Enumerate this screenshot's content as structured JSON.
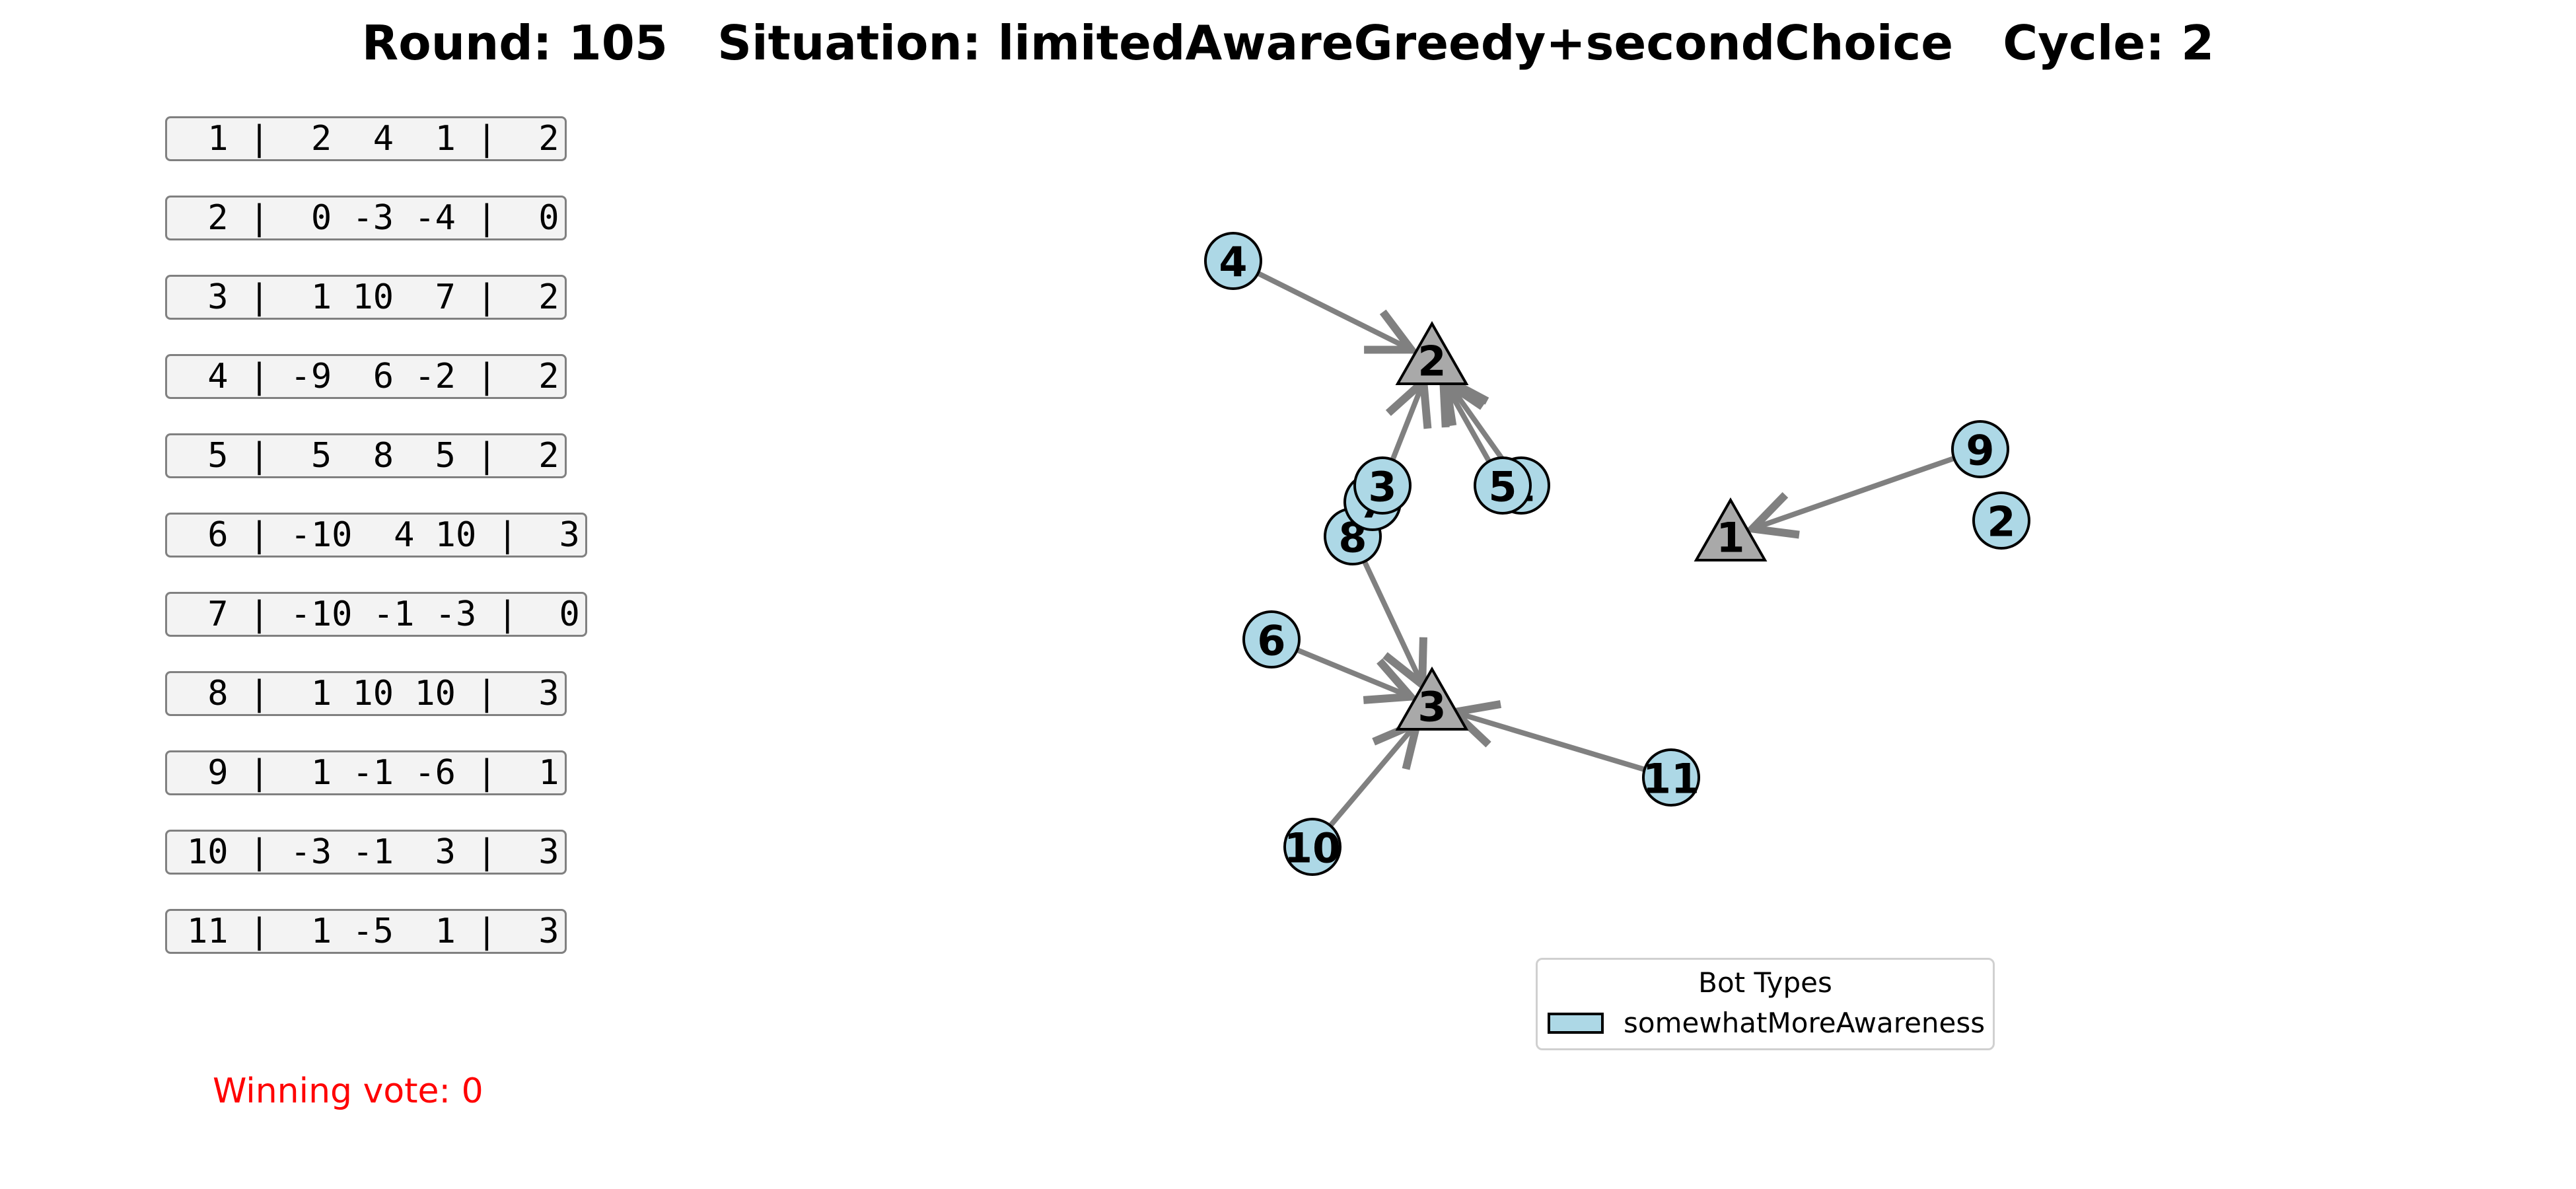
{
  "title": {
    "round_label": "Round:",
    "round": "105",
    "situation_label": "Situation:",
    "situation": "limitedAwareGreedy+secondChoice",
    "cycle_label": "Cycle:",
    "cycle": "2",
    "text": "Round: 105   Situation: limitedAwareGreedy+secondChoice   Cycle: 2"
  },
  "vote_table": [
    {
      "bot": "1",
      "utilities": [
        "2",
        "4",
        "1"
      ],
      "vote": "2",
      "text": " 1 |  2  4  1 |  2"
    },
    {
      "bot": "2",
      "utilities": [
        "0",
        "-3",
        "-4"
      ],
      "vote": "0",
      "text": " 2 |  0 -3 -4 |  0"
    },
    {
      "bot": "3",
      "utilities": [
        "1",
        "10",
        "7"
      ],
      "vote": "2",
      "text": " 3 |  1 10  7 |  2"
    },
    {
      "bot": "4",
      "utilities": [
        "-9",
        "6",
        "-2"
      ],
      "vote": "2",
      "text": " 4 | -9  6 -2 |  2"
    },
    {
      "bot": "5",
      "utilities": [
        "5",
        "8",
        "5"
      ],
      "vote": "2",
      "text": " 5 |  5  8  5 |  2"
    },
    {
      "bot": "6",
      "utilities": [
        "-10",
        "4",
        "10"
      ],
      "vote": "3",
      "text": " 6 | -10  4 10 |  3"
    },
    {
      "bot": "7",
      "utilities": [
        "-10",
        "-1",
        "-3"
      ],
      "vote": "0",
      "text": " 7 | -10 -1 -3 |  0"
    },
    {
      "bot": "8",
      "utilities": [
        "1",
        "10",
        "10"
      ],
      "vote": "3",
      "text": " 8 |  1 10 10 |  3"
    },
    {
      "bot": "9",
      "utilities": [
        "1",
        "-1",
        "-6"
      ],
      "vote": "1",
      "text": " 9 |  1 -1 -6 |  1"
    },
    {
      "bot": "10",
      "utilities": [
        "-3",
        "-1",
        "3"
      ],
      "vote": "3",
      "text": "10 | -3 -1  3 |  3"
    },
    {
      "bot": "11",
      "utilities": [
        "1",
        "-5",
        "1"
      ],
      "vote": "3",
      "text": "11 |  1 -5  1 |  3"
    }
  ],
  "winning_vote": {
    "label": "Winning vote:",
    "value": "0",
    "text": "Winning vote: 0"
  },
  "graph": {
    "candidates": [
      {
        "id": "1",
        "label": "1"
      },
      {
        "id": "2",
        "label": "2"
      },
      {
        "id": "3",
        "label": "3"
      }
    ],
    "bots": [
      {
        "id": "1",
        "label": "1",
        "vote": "2"
      },
      {
        "id": "2",
        "label": "2",
        "vote": "0"
      },
      {
        "id": "3",
        "label": "3",
        "vote": "2"
      },
      {
        "id": "4",
        "label": "4",
        "vote": "2"
      },
      {
        "id": "5",
        "label": "5",
        "vote": "2"
      },
      {
        "id": "6",
        "label": "6",
        "vote": "3"
      },
      {
        "id": "7",
        "label": "7",
        "vote": "0"
      },
      {
        "id": "8",
        "label": "8",
        "vote": "3"
      },
      {
        "id": "9",
        "label": "9",
        "vote": "1"
      },
      {
        "id": "10",
        "label": "10",
        "vote": "3"
      },
      {
        "id": "11",
        "label": "11",
        "vote": "3"
      }
    ],
    "edges": [
      {
        "from": "4",
        "to": "2"
      },
      {
        "from": "3",
        "to": "2"
      },
      {
        "from": "5",
        "to": "2"
      },
      {
        "from": "1",
        "to": "2"
      },
      {
        "from": "9",
        "to": "1"
      },
      {
        "from": "8",
        "to": "3"
      },
      {
        "from": "6",
        "to": "3"
      },
      {
        "from": "10",
        "to": "3"
      },
      {
        "from": "11",
        "to": "3"
      }
    ]
  },
  "legend": {
    "title": "Bot Types",
    "items": [
      {
        "label": "somewhatMoreAwareness",
        "color": "#add8e6"
      }
    ]
  },
  "colors": {
    "bot_fill": "#add8e6",
    "candidate_fill": "#a9a9a9",
    "edge": "#808080",
    "winning_vote": "#ff0000"
  }
}
